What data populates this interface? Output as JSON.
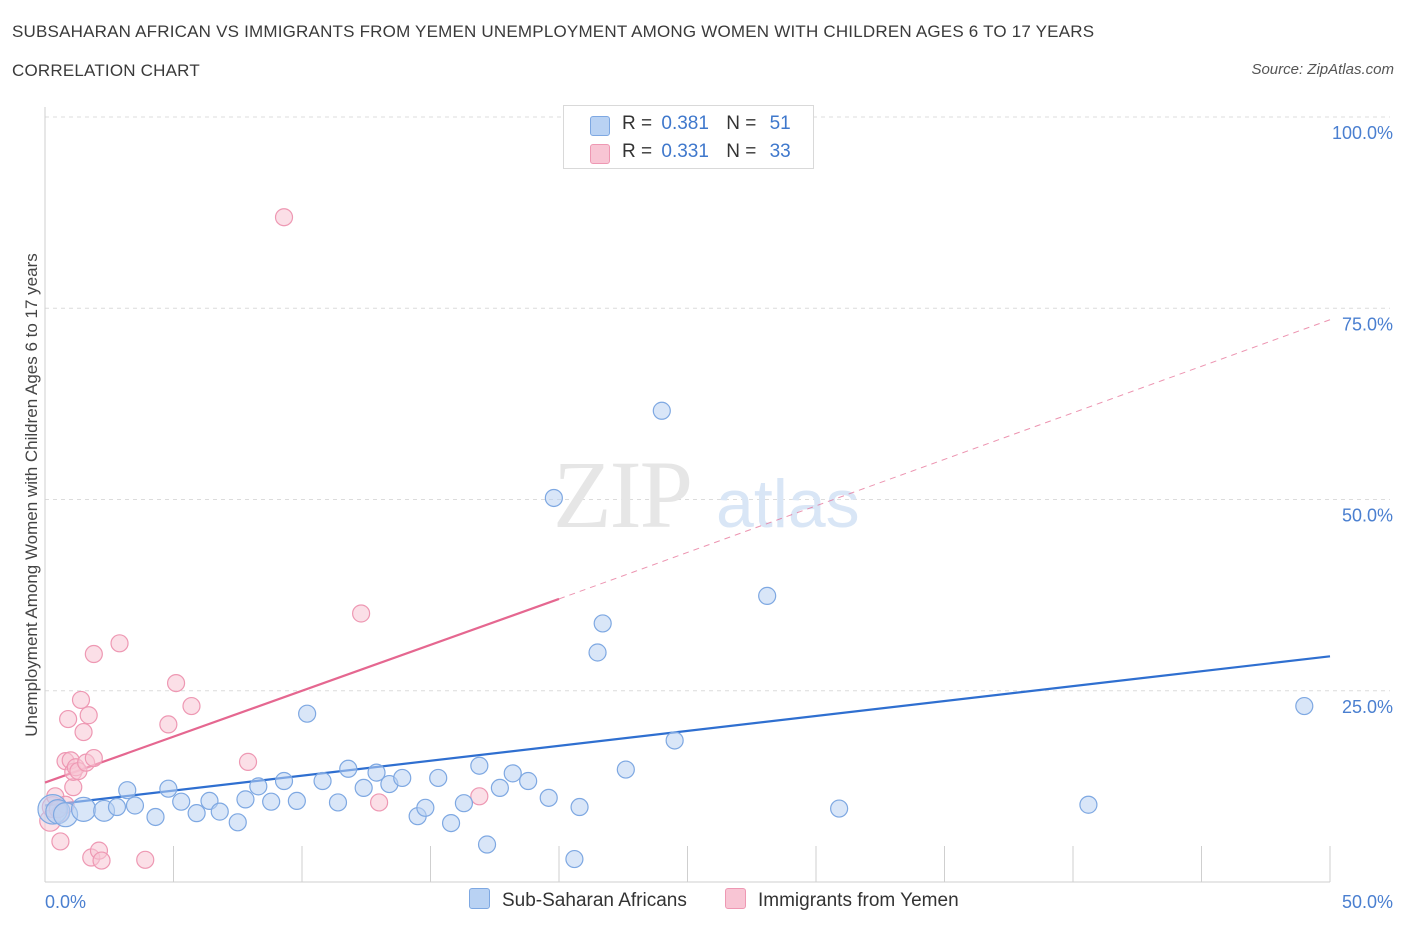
{
  "header": {
    "title": "SUBSAHARAN AFRICAN VS IMMIGRANTS FROM YEMEN UNEMPLOYMENT AMONG WOMEN WITH CHILDREN AGES 6 TO 17 YEARS",
    "subtitle": "CORRELATION CHART",
    "source": "Source: ZipAtlas.com"
  },
  "watermark": {
    "zip": "ZIP",
    "atlas": "atlas"
  },
  "legend": {
    "rows": [
      {
        "r_label": "R =",
        "r_value": "0.381",
        "n_label": "N =",
        "n_value": "51"
      },
      {
        "r_label": "R =",
        "r_value": "0.331",
        "n_label": "N =",
        "n_value": "33"
      }
    ],
    "bottom": [
      "Sub-Saharan Africans",
      "Immigrants from Yemen"
    ]
  },
  "colors": {
    "blue_fill": "#b9d2f3",
    "blue_stroke": "#7ea8e2",
    "blue_line": "#2f6fd0",
    "pink_fill": "#f8c5d4",
    "pink_stroke": "#ee98b3",
    "pink_line": "#e56790",
    "tick_color": "#4a7fd0",
    "grid": "#dcdcdc"
  },
  "chart_data": {
    "type": "scatter",
    "title": "SUBSAHARAN AFRICAN VS IMMIGRANTS FROM YEMEN UNEMPLOYMENT AMONG WOMEN WITH CHILDREN AGES 6 TO 17 YEARS",
    "xlabel": "",
    "ylabel": "Unemployment Among Women with Children Ages 6 to 17 years",
    "xlim": [
      0,
      50
    ],
    "ylim": [
      0,
      100
    ],
    "x_ticks": [
      "0.0%",
      "50.0%"
    ],
    "y_ticks": [
      "25.0%",
      "50.0%",
      "75.0%",
      "100.0%"
    ],
    "y_tick_values": [
      25,
      50,
      75,
      100
    ],
    "grid": true,
    "legend_position": "top-center",
    "series": [
      {
        "name": "Sub-Saharan Africans",
        "R": 0.381,
        "N": 51,
        "trend": {
          "x": [
            0,
            50
          ],
          "y": [
            10.0,
            29.5
          ],
          "dashed_extension": false
        },
        "points": [
          {
            "x": 0.3,
            "y": 9.5,
            "s": 3
          },
          {
            "x": 0.5,
            "y": 9.2,
            "s": 2
          },
          {
            "x": 0.8,
            "y": 8.8,
            "s": 2
          },
          {
            "x": 1.5,
            "y": 9.5,
            "s": 2
          },
          {
            "x": 2.3,
            "y": 9.3,
            "s": 1.5
          },
          {
            "x": 2.8,
            "y": 9.8,
            "s": 1
          },
          {
            "x": 3.2,
            "y": 12.0,
            "s": 1
          },
          {
            "x": 3.5,
            "y": 10.0,
            "s": 1
          },
          {
            "x": 4.3,
            "y": 8.5,
            "s": 1
          },
          {
            "x": 4.8,
            "y": 12.2,
            "s": 1
          },
          {
            "x": 5.3,
            "y": 10.5,
            "s": 1
          },
          {
            "x": 5.9,
            "y": 9.0,
            "s": 1
          },
          {
            "x": 6.4,
            "y": 10.6,
            "s": 1
          },
          {
            "x": 6.8,
            "y": 9.2,
            "s": 1
          },
          {
            "x": 7.5,
            "y": 7.8,
            "s": 1
          },
          {
            "x": 7.8,
            "y": 10.8,
            "s": 1
          },
          {
            "x": 8.3,
            "y": 12.5,
            "s": 1
          },
          {
            "x": 8.8,
            "y": 10.5,
            "s": 1
          },
          {
            "x": 9.3,
            "y": 13.2,
            "s": 1
          },
          {
            "x": 9.8,
            "y": 10.6,
            "s": 1
          },
          {
            "x": 10.2,
            "y": 22.0,
            "s": 1
          },
          {
            "x": 10.8,
            "y": 13.2,
            "s": 1
          },
          {
            "x": 11.4,
            "y": 10.4,
            "s": 1
          },
          {
            "x": 11.8,
            "y": 14.8,
            "s": 1
          },
          {
            "x": 12.4,
            "y": 12.3,
            "s": 1
          },
          {
            "x": 12.9,
            "y": 14.3,
            "s": 1
          },
          {
            "x": 13.4,
            "y": 12.8,
            "s": 1
          },
          {
            "x": 13.9,
            "y": 13.6,
            "s": 1
          },
          {
            "x": 14.5,
            "y": 8.6,
            "s": 1
          },
          {
            "x": 14.8,
            "y": 9.7,
            "s": 1
          },
          {
            "x": 15.3,
            "y": 13.6,
            "s": 1
          },
          {
            "x": 15.8,
            "y": 7.7,
            "s": 1
          },
          {
            "x": 16.3,
            "y": 10.3,
            "s": 1
          },
          {
            "x": 16.9,
            "y": 15.2,
            "s": 1
          },
          {
            "x": 17.2,
            "y": 4.9,
            "s": 1
          },
          {
            "x": 17.7,
            "y": 12.3,
            "s": 1
          },
          {
            "x": 18.2,
            "y": 14.2,
            "s": 1
          },
          {
            "x": 18.8,
            "y": 13.2,
            "s": 1
          },
          {
            "x": 19.6,
            "y": 11.0,
            "s": 1
          },
          {
            "x": 19.8,
            "y": 50.2,
            "s": 1
          },
          {
            "x": 20.6,
            "y": 3.0,
            "s": 1
          },
          {
            "x": 20.8,
            "y": 9.8,
            "s": 1
          },
          {
            "x": 21.5,
            "y": 30.0,
            "s": 1
          },
          {
            "x": 21.7,
            "y": 33.8,
            "s": 1
          },
          {
            "x": 22.6,
            "y": 14.7,
            "s": 1
          },
          {
            "x": 24.0,
            "y": 61.6,
            "s": 1
          },
          {
            "x": 24.5,
            "y": 18.5,
            "s": 1
          },
          {
            "x": 28.1,
            "y": 37.4,
            "s": 1
          },
          {
            "x": 30.9,
            "y": 9.6,
            "s": 1
          },
          {
            "x": 40.6,
            "y": 10.1,
            "s": 1
          },
          {
            "x": 49.0,
            "y": 23.0,
            "s": 1
          }
        ]
      },
      {
        "name": "Immigrants from Yemen",
        "R": 0.331,
        "N": 33,
        "trend": {
          "x": [
            0,
            20
          ],
          "y": [
            13.0,
            37.0
          ],
          "dashed_to": [
            50,
            73.5
          ]
        },
        "points": [
          {
            "x": 0.2,
            "y": 8.0,
            "s": 1.5
          },
          {
            "x": 0.3,
            "y": 9.8,
            "s": 1.5
          },
          {
            "x": 0.4,
            "y": 11.2,
            "s": 1
          },
          {
            "x": 0.6,
            "y": 5.3,
            "s": 1
          },
          {
            "x": 0.6,
            "y": 9.0,
            "s": 1
          },
          {
            "x": 0.8,
            "y": 10.1,
            "s": 1
          },
          {
            "x": 0.8,
            "y": 15.8,
            "s": 1
          },
          {
            "x": 0.9,
            "y": 21.3,
            "s": 1
          },
          {
            "x": 1.0,
            "y": 15.9,
            "s": 1
          },
          {
            "x": 1.1,
            "y": 12.4,
            "s": 1
          },
          {
            "x": 1.1,
            "y": 14.4,
            "s": 1
          },
          {
            "x": 1.2,
            "y": 15.0,
            "s": 1
          },
          {
            "x": 1.3,
            "y": 14.5,
            "s": 1
          },
          {
            "x": 1.4,
            "y": 23.8,
            "s": 1
          },
          {
            "x": 1.5,
            "y": 19.6,
            "s": 1
          },
          {
            "x": 1.6,
            "y": 15.6,
            "s": 1
          },
          {
            "x": 1.7,
            "y": 21.8,
            "s": 1
          },
          {
            "x": 1.8,
            "y": 3.2,
            "s": 1
          },
          {
            "x": 1.9,
            "y": 16.2,
            "s": 1
          },
          {
            "x": 1.9,
            "y": 29.8,
            "s": 1
          },
          {
            "x": 2.1,
            "y": 4.1,
            "s": 1
          },
          {
            "x": 2.2,
            "y": 2.8,
            "s": 1
          },
          {
            "x": 2.9,
            "y": 31.2,
            "s": 1
          },
          {
            "x": 3.9,
            "y": 2.9,
            "s": 1
          },
          {
            "x": 4.8,
            "y": 20.6,
            "s": 1
          },
          {
            "x": 5.1,
            "y": 26.0,
            "s": 1
          },
          {
            "x": 5.7,
            "y": 23.0,
            "s": 1
          },
          {
            "x": 7.9,
            "y": 15.7,
            "s": 1
          },
          {
            "x": 9.3,
            "y": 86.9,
            "s": 1
          },
          {
            "x": 12.3,
            "y": 35.1,
            "s": 1
          },
          {
            "x": 13.0,
            "y": 10.4,
            "s": 1
          },
          {
            "x": 16.9,
            "y": 11.2,
            "s": 1
          },
          {
            "x": 0.5,
            "y": 9.5,
            "s": 1
          }
        ]
      }
    ]
  }
}
